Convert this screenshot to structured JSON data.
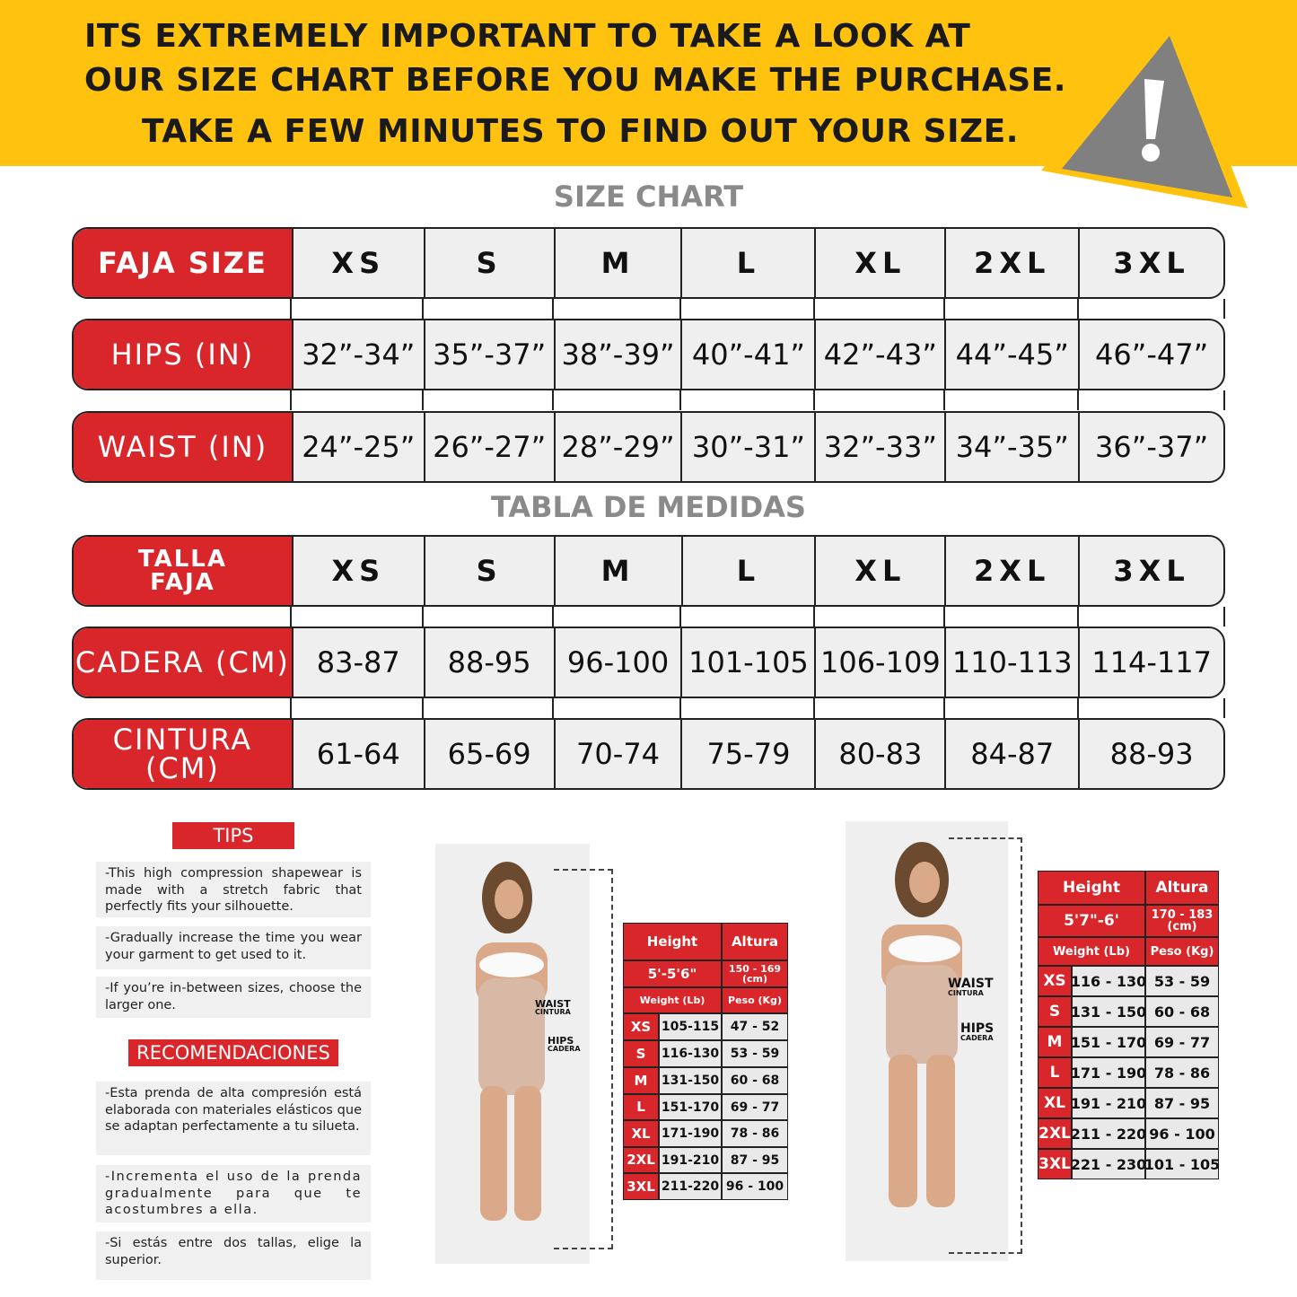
{
  "banner": {
    "line1": "ITS EXTREMELY IMPORTANT TO TAKE A LOOK AT",
    "line2": "OUR SIZE CHART BEFORE YOU MAKE THE PURCHASE.",
    "line3": "TAKE A FEW MINUTES TO FIND OUT YOUR SIZE.",
    "icon": "warning-triangle-icon",
    "colors": {
      "banner": "#FFC20E",
      "accent": "#D9262B"
    }
  },
  "size_chart": {
    "title": "SIZE CHART",
    "rows": [
      {
        "label": "FAJA SIZE",
        "cells": [
          "XS",
          "S",
          "M",
          "L",
          "XL",
          "2XL",
          "3XL"
        ]
      },
      {
        "label": "HIPS (IN)",
        "cells": [
          "32”-34”",
          "35”-37”",
          "38”-39”",
          "40”-41”",
          "42”-43”",
          "44”-45”",
          "46”-47”"
        ]
      },
      {
        "label": "WAIST (IN)",
        "cells": [
          "24”-25”",
          "26”-27”",
          "28”-29”",
          "30”-31”",
          "32”-33”",
          "34”-35”",
          "36”-37”"
        ]
      }
    ]
  },
  "tabla": {
    "title": "TABLA DE MEDIDAS",
    "rows": [
      {
        "label": "TALLA FAJA",
        "cells": [
          "XS",
          "S",
          "M",
          "L",
          "XL",
          "2XL",
          "3XL"
        ]
      },
      {
        "label": "CADERA (CM)",
        "cells": [
          "83-87",
          "88-95",
          "96-100",
          "101-105",
          "106-109",
          "110-113",
          "114-117"
        ]
      },
      {
        "label": "CINTURA (CM)",
        "cells": [
          "61-64",
          "65-69",
          "70-74",
          "75-79",
          "80-83",
          "84-87",
          "88-93"
        ]
      }
    ]
  },
  "tips": {
    "heading": "TIPS",
    "items": [
      "-This high compression shapewear is made with a stretch fabric that perfectly fits your silhouette.",
      "-Gradually increase the time you wear your garment to get used to it.",
      "-If you’re in-between sizes, choose the larger one."
    ]
  },
  "recomendaciones": {
    "heading": "RECOMENDACIONES",
    "items": [
      "-Esta prenda de alta compresión está elaborada con materiales elásticos que se adaptan perfectamente a tu silueta.",
      "-Incrementa el uso de la prenda gradualmente para que te acostumbres a ella.",
      "-Si estás entre dos tallas, elige la superior."
    ]
  },
  "figure_labels": {
    "waist": "WAIST",
    "cintura": "CINTURA",
    "hips": "HIPS",
    "cadera": "CADERA"
  },
  "height_tables": [
    {
      "h_label": "Height",
      "a_label": "Altura",
      "height": "5'-5'6\"",
      "altura": "150 - 169 (cm)",
      "w_label": "Weight (Lb)",
      "p_label": "Peso (Kg)",
      "rows": [
        [
          "XS",
          "105-115",
          "47 - 52"
        ],
        [
          "S",
          "116-130",
          "53 - 59"
        ],
        [
          "M",
          "131-150",
          "60 - 68"
        ],
        [
          "L",
          "151-170",
          "69 - 77"
        ],
        [
          "XL",
          "171-190",
          "78 - 86"
        ],
        [
          "2XL",
          "191-210",
          "87 - 95"
        ],
        [
          "3XL",
          "211-220",
          "96 - 100"
        ]
      ]
    },
    {
      "h_label": "Height",
      "a_label": "Altura",
      "height": "5'7\"-6'",
      "altura": "170 - 183 (cm)",
      "w_label": "Weight (Lb)",
      "p_label": "Peso (Kg)",
      "rows": [
        [
          "XS",
          "116 - 130",
          "53 - 59"
        ],
        [
          "S",
          "131 - 150",
          "60 - 68"
        ],
        [
          "M",
          "151 - 170",
          "69 - 77"
        ],
        [
          "L",
          "171 - 190",
          "78 - 86"
        ],
        [
          "XL",
          "191 - 210",
          "87 - 95"
        ],
        [
          "2XL",
          "211 - 220",
          "96 - 100"
        ],
        [
          "3XL",
          "221 - 230",
          "101 - 105"
        ]
      ]
    }
  ]
}
